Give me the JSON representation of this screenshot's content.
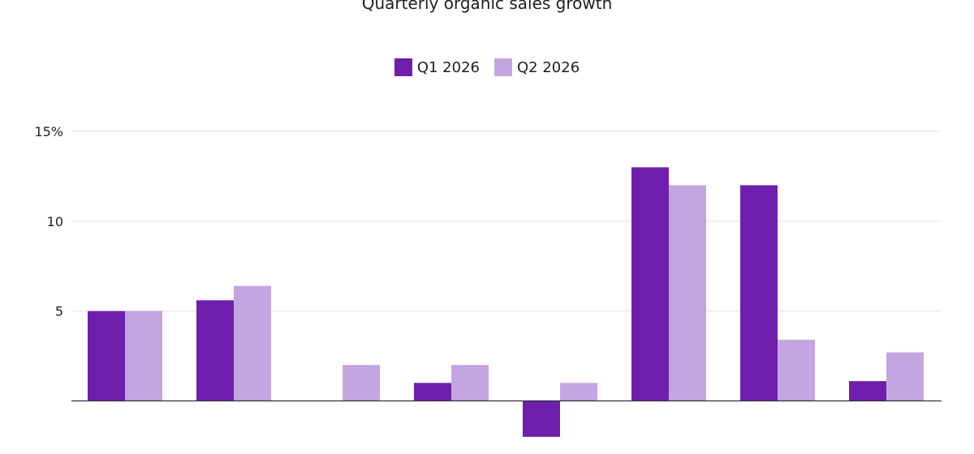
{
  "chart_data": {
    "type": "bar",
    "title": "Quarterly organic sales growth",
    "categories": [
      "",
      "",
      "",
      "",
      "",
      "",
      "",
      ""
    ],
    "series": [
      {
        "name": "Q1 2026",
        "color": "#6f1fad",
        "values": [
          5,
          5.6,
          0,
          1,
          -2,
          13,
          12,
          1.1
        ]
      },
      {
        "name": "Q2 2026",
        "color": "#c3a6e0",
        "values": [
          5,
          6.4,
          2,
          2,
          1,
          12,
          3.4,
          2.7
        ]
      }
    ],
    "yticks": [
      {
        "value": 5,
        "label": "5"
      },
      {
        "value": 10,
        "label": "10"
      },
      {
        "value": 15,
        "label": "15%"
      }
    ],
    "ylim": [
      -2,
      15
    ],
    "xlabel": "",
    "ylabel": "",
    "grid": true,
    "legend_position": "top-center"
  }
}
